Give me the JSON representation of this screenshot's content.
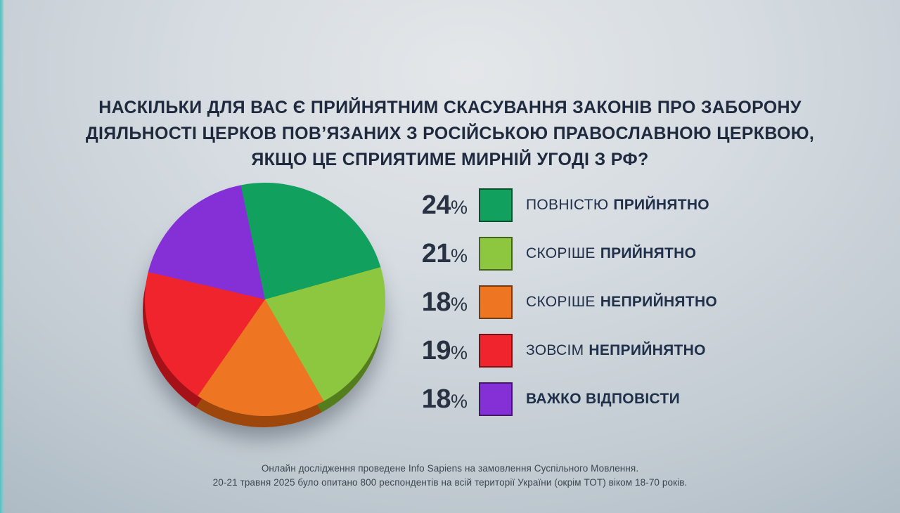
{
  "title": {
    "lines": [
      "НАСКІЛЬКИ ДЛЯ ВАС Є ПРИЙНЯТНИМ СКАСУВАННЯ ЗАКОНІВ ПРО ЗАБОРОНУ",
      "ДІЯЛЬНОСТІ ЦЕРКОВ ПОВ’ЯЗАНИХ З РОСІЙСЬКОЮ ПРАВОСЛАВНОЮ ЦЕРКВОЮ,",
      "ЯКЩО ЦЕ СПРИЯТИМЕ МИРНІЙ УГОДІ З РФ?"
    ]
  },
  "legend": {
    "percent_sign": "%",
    "items": [
      {
        "pct": "24",
        "prefix": "ПОВНІСТЮ",
        "emphasis": "ПРИЙНЯТНО"
      },
      {
        "pct": "21",
        "prefix": "СКОРІШЕ",
        "emphasis": "ПРИЙНЯТНО"
      },
      {
        "pct": "18",
        "prefix": "СКОРІШЕ",
        "emphasis": "НЕПРИЙНЯТНО"
      },
      {
        "pct": "19",
        "prefix": "ЗОВСІМ",
        "emphasis": "НЕПРИЙНЯТНО"
      },
      {
        "pct": "18",
        "prefix": "",
        "emphasis": "ВАЖКО ВІДПОВІСТИ"
      }
    ]
  },
  "footer": {
    "line1": "Онлайн дослідження проведене Info Sapiens на замовлення Суспільного Мовлення.",
    "line2": "20-21 травня 2025 було опитано 800 респондентів на всій території України (окрім ТОТ) віком 18-70 років."
  },
  "colors": {
    "accent_strip": "#57bec2",
    "title_text": "#1f2a3e",
    "legend_text": "#20304a",
    "footer_text": "#3c4650"
  },
  "chart_data": {
    "type": "pie",
    "title": "НАСКІЛЬКИ ДЛЯ ВАС Є ПРИЙНЯТНИМ СКАСУВАННЯ ЗАКОНІВ ПРО ЗАБОРОНУ ДІЯЛЬНОСТІ ЦЕРКОВ ПОВ’ЯЗАНИХ З РОСІЙСЬКОЮ ПРАВОСЛАВНОЮ ЦЕРКВОЮ, ЯКЩО ЦЕ СПРИЯТИМЕ МИРНІЙ УГОДІ З РФ?",
    "legend_position": "right",
    "start_angle_deg": -12,
    "slices": [
      {
        "label": "ПОВНІСТЮ ПРИЙНЯТНО",
        "value": 24,
        "color": "#11a05e"
      },
      {
        "label": "СКОРІШЕ ПРИЙНЯТНО",
        "value": 21,
        "color": "#8dc63f"
      },
      {
        "label": "СКОРІШЕ НЕПРИЙНЯТНО",
        "value": 18,
        "color": "#ee7623"
      },
      {
        "label": "ЗОВСІМ НЕПРИЙНЯТНО",
        "value": 19,
        "color": "#f0242c"
      },
      {
        "label": "ВАЖКО ВІДПОВІСТИ",
        "value": 18,
        "color": "#8430d6"
      }
    ],
    "source": "Онлайн дослідження проведене Info Sapiens на замовлення Суспільного Мовлення. 20-21 травня 2025 було опитано 800 респондентів на всій території України (окрім ТОТ) віком 18-70 років."
  }
}
